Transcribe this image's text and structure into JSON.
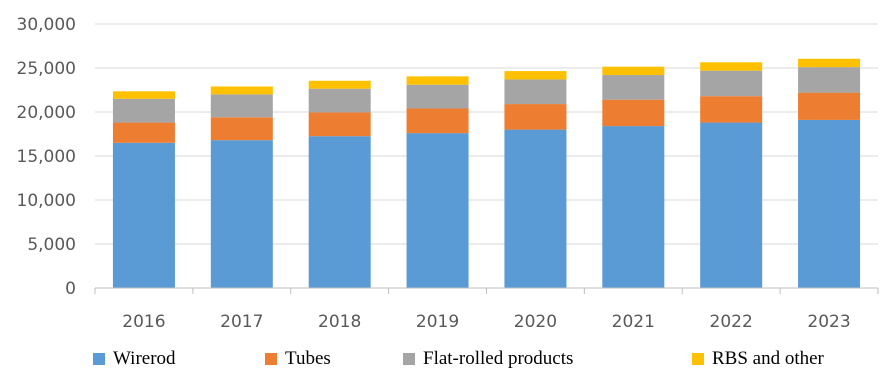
{
  "chart_data": {
    "type": "bar",
    "stacked": true,
    "categories": [
      "2016",
      "2017",
      "2018",
      "2019",
      "2020",
      "2021",
      "2022",
      "2023"
    ],
    "series": [
      {
        "name": "Wirerod",
        "color": "#5B9BD5",
        "values": [
          16500,
          16800,
          17250,
          17600,
          18000,
          18400,
          18800,
          19100
        ]
      },
      {
        "name": "Tubes",
        "color": "#ED7D31",
        "values": [
          2300,
          2600,
          2700,
          2800,
          2900,
          3000,
          3000,
          3100
        ]
      },
      {
        "name": "Flat-rolled products",
        "color": "#A5A5A5",
        "values": [
          2700,
          2600,
          2700,
          2700,
          2800,
          2800,
          2900,
          2900
        ]
      },
      {
        "name": "RBS and other",
        "color": "#FFC000",
        "values": [
          850,
          900,
          900,
          950,
          950,
          950,
          950,
          950
        ]
      }
    ],
    "y_ticks": [
      "0",
      "5,000",
      "10,000",
      "15,000",
      "20,000",
      "25,000",
      "30,000"
    ],
    "ylim": [
      0,
      30000
    ],
    "grid": true,
    "legend_position": "bottom"
  }
}
